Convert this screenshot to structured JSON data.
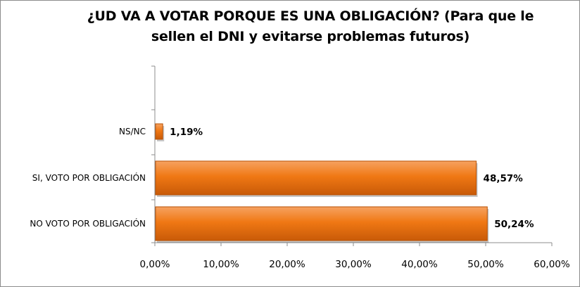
{
  "chart_data": {
    "type": "bar",
    "orientation": "horizontal",
    "title": "¿UD VA A VOTAR PORQUE ES UNA OBLIGACIÓN? (Para que le sellen el DNI y evitarse problemas futuros)",
    "categories": [
      "NS/NC",
      "SI, VOTO POR OBLIGACIÓN",
      "NO VOTO POR OBLIGACIÓN"
    ],
    "values": [
      1.19,
      48.57,
      50.24
    ],
    "value_labels": [
      "1,19%",
      "48,57%",
      "50,24%"
    ],
    "xlim": [
      0,
      60
    ],
    "x_ticks": [
      0,
      10,
      20,
      30,
      40,
      50,
      60
    ],
    "x_tick_labels": [
      "0,00%",
      "10,00%",
      "20,00%",
      "30,00%",
      "40,00%",
      "50,00%",
      "60,00%"
    ],
    "grid": false,
    "bar_color": "#F07814"
  }
}
